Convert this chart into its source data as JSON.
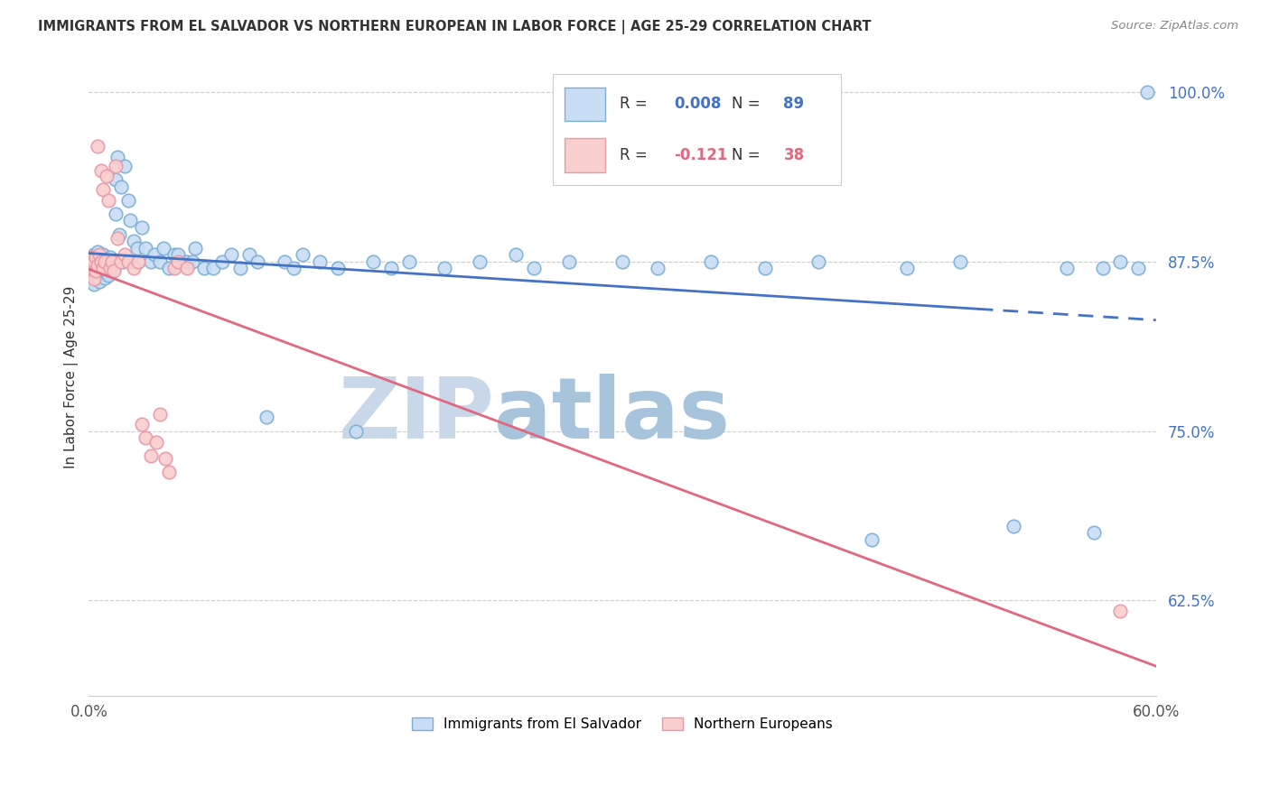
{
  "title": "IMMIGRANTS FROM EL SALVADOR VS NORTHERN EUROPEAN IN LABOR FORCE | AGE 25-29 CORRELATION CHART",
  "source": "Source: ZipAtlas.com",
  "ylabel": "In Labor Force | Age 25-29",
  "xlim": [
    0.0,
    0.6
  ],
  "ylim": [
    0.555,
    1.025
  ],
  "ytick_positions": [
    0.625,
    0.75,
    0.875,
    1.0
  ],
  "ytick_labels": [
    "62.5%",
    "75.0%",
    "87.5%",
    "100.0%"
  ],
  "xticks": [
    0.0,
    0.1,
    0.2,
    0.3,
    0.4,
    0.5,
    0.6
  ],
  "xtick_labels": [
    "0.0%",
    "",
    "",
    "",
    "",
    "",
    "60.0%"
  ],
  "R_blue": "0.008",
  "N_blue": "89",
  "R_pink": "-0.121",
  "N_pink": "38",
  "blue_face": "#c9ddf5",
  "blue_edge": "#7bafd4",
  "pink_face": "#f9cece",
  "pink_edge": "#e899a8",
  "blue_line_color": "#4472c4",
  "pink_line_color": "#e06880",
  "watermark_zip": "ZIP",
  "watermark_atlas": "atlas",
  "watermark_zip_color": "#c8d8e8",
  "watermark_atlas_color": "#a8c4dc",
  "legend_border_color": "#cccccc",
  "blue_x": [
    0.001,
    0.002,
    0.002,
    0.003,
    0.003,
    0.003,
    0.004,
    0.004,
    0.005,
    0.005,
    0.005,
    0.006,
    0.006,
    0.006,
    0.007,
    0.007,
    0.008,
    0.008,
    0.009,
    0.009,
    0.01,
    0.01,
    0.011,
    0.011,
    0.012,
    0.012,
    0.013,
    0.014,
    0.015,
    0.015,
    0.016,
    0.017,
    0.018,
    0.019,
    0.02,
    0.022,
    0.023,
    0.025,
    0.027,
    0.028,
    0.03,
    0.032,
    0.035,
    0.037,
    0.04,
    0.042,
    0.045,
    0.048,
    0.05,
    0.055,
    0.058,
    0.06,
    0.065,
    0.07,
    0.075,
    0.08,
    0.085,
    0.09,
    0.095,
    0.1,
    0.11,
    0.115,
    0.12,
    0.13,
    0.14,
    0.15,
    0.16,
    0.17,
    0.18,
    0.2,
    0.22,
    0.24,
    0.25,
    0.27,
    0.3,
    0.32,
    0.35,
    0.38,
    0.41,
    0.44,
    0.46,
    0.49,
    0.52,
    0.55,
    0.565,
    0.57,
    0.58,
    0.59,
    0.595
  ],
  "blue_y": [
    0.875,
    0.878,
    0.872,
    0.868,
    0.88,
    0.858,
    0.875,
    0.865,
    0.882,
    0.87,
    0.862,
    0.876,
    0.868,
    0.86,
    0.875,
    0.87,
    0.88,
    0.868,
    0.875,
    0.863,
    0.875,
    0.867,
    0.875,
    0.865,
    0.87,
    0.878,
    0.875,
    0.87,
    0.935,
    0.91,
    0.952,
    0.895,
    0.93,
    0.875,
    0.945,
    0.92,
    0.905,
    0.89,
    0.885,
    0.875,
    0.9,
    0.885,
    0.875,
    0.88,
    0.875,
    0.885,
    0.87,
    0.88,
    0.88,
    0.875,
    0.875,
    0.885,
    0.87,
    0.87,
    0.875,
    0.88,
    0.87,
    0.88,
    0.875,
    0.76,
    0.875,
    0.87,
    0.88,
    0.875,
    0.87,
    0.75,
    0.875,
    0.87,
    0.875,
    0.87,
    0.875,
    0.88,
    0.87,
    0.875,
    0.875,
    0.87,
    0.875,
    0.87,
    0.875,
    0.67,
    0.87,
    0.875,
    0.68,
    0.87,
    0.675,
    0.87,
    0.875,
    0.87,
    1.0
  ],
  "pink_x": [
    0.001,
    0.002,
    0.002,
    0.003,
    0.003,
    0.004,
    0.004,
    0.005,
    0.005,
    0.006,
    0.007,
    0.007,
    0.008,
    0.008,
    0.009,
    0.01,
    0.011,
    0.012,
    0.013,
    0.014,
    0.015,
    0.016,
    0.018,
    0.02,
    0.022,
    0.025,
    0.028,
    0.03,
    0.032,
    0.035,
    0.038,
    0.04,
    0.043,
    0.045,
    0.048,
    0.05,
    0.055,
    0.58
  ],
  "pink_y": [
    0.875,
    0.87,
    0.878,
    0.875,
    0.862,
    0.878,
    0.868,
    0.872,
    0.96,
    0.88,
    0.875,
    0.942,
    0.87,
    0.928,
    0.875,
    0.938,
    0.92,
    0.87,
    0.875,
    0.868,
    0.945,
    0.892,
    0.875,
    0.88,
    0.875,
    0.87,
    0.875,
    0.755,
    0.745,
    0.732,
    0.742,
    0.762,
    0.73,
    0.72,
    0.87,
    0.875,
    0.87,
    0.617
  ]
}
